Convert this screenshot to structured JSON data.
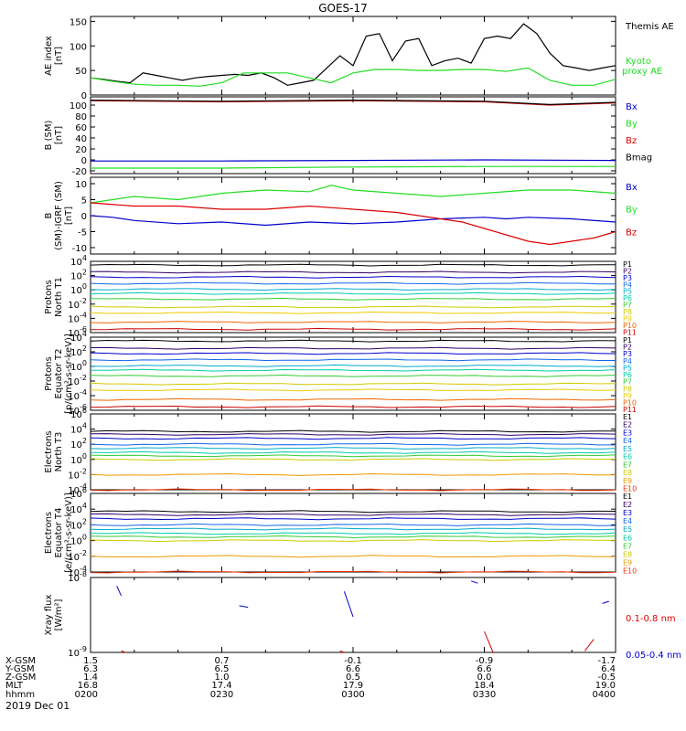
{
  "title": "GOES-17",
  "footer_date": "2019 Dec 01",
  "colors": {
    "black": "#000000",
    "green": "#22dd22",
    "red": "#dd0000",
    "blue": "#0000cc",
    "P": [
      "#000000",
      "#330066",
      "#0000cc",
      "#1166ee",
      "#00aacc",
      "#00ccaa",
      "#33cc33",
      "#cccc00",
      "#eecc00",
      "#ee6600",
      "#cc0000"
    ],
    "E": [
      "#000000",
      "#330066",
      "#0000cc",
      "#1166ee",
      "#00aacc",
      "#00ccaa",
      "#33cc33",
      "#cccc00",
      "#ee9900",
      "#ee3300",
      "#cc0000"
    ]
  },
  "ephemeris": {
    "labels": [
      "X-GSM",
      "Y-GSM",
      "Z-GSM",
      "MLT",
      "hhmm"
    ],
    "columns": [
      {
        "time": "0200",
        "values": [
          "1.5",
          "6.3",
          "1.4",
          "16.8",
          "0200"
        ]
      },
      {
        "time": "0230",
        "values": [
          "0.7",
          "6.5",
          "1.0",
          "17.4",
          "0230"
        ]
      },
      {
        "time": "0300",
        "values": [
          "-0.1",
          "6.6",
          "0.5",
          "17.9",
          "0300"
        ]
      },
      {
        "time": "0330",
        "values": [
          "-0.9",
          "6.6",
          "0.0",
          "18.4",
          "0330"
        ]
      },
      {
        "time": "0400",
        "values": [
          "-1.7",
          "6.4",
          "-0.5",
          "19.0",
          "0400"
        ]
      }
    ]
  },
  "chart_data": [
    {
      "type": "line",
      "panel": "AE index",
      "ylabel": "AE index",
      "yunits": "[nT]",
      "ylim": [
        0,
        160
      ],
      "yticks": [
        "0",
        "50",
        "100",
        "150"
      ],
      "xlim": [
        "0200",
        "0400"
      ],
      "series": [
        {
          "name": "Themis AE",
          "color": "black",
          "x": [
            0,
            3,
            6,
            9,
            12,
            15,
            18,
            21,
            24,
            27,
            30,
            33,
            36,
            39,
            42,
            45,
            48,
            51,
            54,
            57,
            60,
            63,
            66,
            69,
            72,
            75,
            78,
            81,
            84,
            87,
            90,
            93,
            96,
            99,
            102,
            105,
            108,
            111,
            114,
            117,
            120
          ],
          "y": [
            35,
            32,
            28,
            25,
            45,
            40,
            35,
            30,
            35,
            38,
            40,
            42,
            40,
            45,
            35,
            20,
            25,
            30,
            55,
            80,
            60,
            120,
            125,
            70,
            110,
            115,
            60,
            70,
            75,
            65,
            115,
            120,
            115,
            145,
            125,
            85,
            60,
            55,
            50,
            55,
            60
          ]
        },
        {
          "name": "Kyoto proxy AE",
          "color": "green",
          "x": [
            0,
            5,
            10,
            15,
            20,
            25,
            30,
            35,
            40,
            45,
            50,
            55,
            60,
            65,
            70,
            75,
            80,
            85,
            90,
            95,
            100,
            105,
            110,
            115,
            120
          ],
          "y": [
            35,
            28,
            22,
            20,
            20,
            18,
            25,
            45,
            45,
            45,
            35,
            25,
            45,
            52,
            52,
            50,
            50,
            52,
            52,
            48,
            55,
            30,
            20,
            20,
            32
          ]
        }
      ]
    },
    {
      "type": "line",
      "panel": "B (SM)",
      "ylabel": "B (SM)",
      "yunits": "[nT]",
      "ylim": [
        -25,
        115
      ],
      "yticks": [
        "-20",
        "0",
        "20",
        "40",
        "60",
        "80",
        "100"
      ],
      "series": [
        {
          "name": "Bx",
          "color": "blue",
          "x": [
            0,
            30,
            60,
            90,
            120
          ],
          "y": [
            -2,
            -2,
            -1,
            0,
            -1
          ]
        },
        {
          "name": "By",
          "color": "green",
          "x": [
            0,
            30,
            60,
            90,
            120
          ],
          "y": [
            -15,
            -15,
            -13,
            -12,
            -12
          ]
        },
        {
          "name": "Bz",
          "color": "red",
          "x": [
            0,
            30,
            60,
            90,
            105,
            120
          ],
          "y": [
            108,
            106,
            108,
            106,
            100,
            104
          ]
        },
        {
          "name": "Bmag",
          "color": "black",
          "x": [
            0,
            30,
            60,
            90,
            105,
            120
          ],
          "y": [
            109,
            107,
            109,
            107,
            101,
            105
          ]
        }
      ]
    },
    {
      "type": "line",
      "panel": "B (SM)-IGRF (SM)",
      "ylabel": "B (SM)-IGRF (SM)",
      "yunits": "[nT]",
      "ylim": [
        -12,
        12
      ],
      "yticks": [
        "-10",
        "-5",
        "0",
        "5",
        "10"
      ],
      "series": [
        {
          "name": "Bx",
          "color": "blue",
          "x": [
            0,
            5,
            10,
            20,
            30,
            40,
            50,
            60,
            70,
            80,
            90,
            95,
            100,
            110,
            120
          ],
          "y": [
            0,
            -0.5,
            -1.5,
            -2.5,
            -2,
            -3,
            -2,
            -2.5,
            -2,
            -1,
            -0.5,
            -1,
            -0.5,
            -1,
            -2
          ]
        },
        {
          "name": "By",
          "color": "green",
          "x": [
            0,
            10,
            20,
            30,
            40,
            50,
            55,
            60,
            70,
            80,
            90,
            100,
            110,
            120
          ],
          "y": [
            4,
            6,
            5,
            7,
            8,
            7.5,
            9.5,
            8,
            7,
            6,
            7,
            8,
            8,
            7
          ]
        },
        {
          "name": "Bz",
          "color": "red",
          "x": [
            0,
            10,
            20,
            30,
            40,
            50,
            60,
            70,
            75,
            80,
            85,
            90,
            95,
            100,
            105,
            110,
            115,
            120
          ],
          "y": [
            4,
            3,
            3,
            2,
            2,
            3,
            2,
            1,
            0,
            -1,
            -2,
            -4,
            -6,
            -8,
            -9,
            -8,
            -7,
            -5
          ]
        }
      ]
    },
    {
      "type": "line",
      "panel": "Protons North T1",
      "ylabel": "Protons North T1",
      "yunits": "",
      "scale": "log",
      "ylim": [
        1e-06,
        10000.0
      ],
      "yticks": [
        "10^4",
        "10^2",
        "10^0",
        "10^-2",
        "10^-4",
        "10^-6"
      ],
      "series_names": [
        "P1",
        "P2",
        "P3",
        "P4",
        "P5",
        "P6",
        "P7",
        "P8",
        "P9",
        "P10",
        "P11"
      ],
      "levels": [
        3000,
        300,
        60,
        8,
        1.2,
        0.3,
        0.05,
        0.004,
        0.0006,
        3e-05,
        3e-06
      ]
    },
    {
      "type": "line",
      "panel": "Protons Equator T2",
      "ylabel": "Protons Equator T2",
      "yunits": "[p/(cm²-s-sr-keV)]",
      "scale": "log",
      "ylim": [
        1e-06,
        10000.0
      ],
      "yticks": [
        "10^4",
        "10^2",
        "10^0",
        "10^-2",
        "10^-4",
        "10^-6"
      ],
      "series_names": [
        "P1",
        "P2",
        "P3",
        "P4",
        "P5",
        "P6",
        "P7",
        "P8",
        "P9",
        "P10",
        "P11"
      ],
      "levels": [
        3000,
        300,
        60,
        8,
        1.2,
        0.3,
        0.05,
        0.004,
        0.0006,
        3e-05,
        3e-06
      ]
    },
    {
      "type": "line",
      "panel": "Electrons North T3",
      "ylabel": "Electrons North T3",
      "yunits": "",
      "scale": "log",
      "ylim": [
        0.0001,
        1000000.0
      ],
      "yticks": [
        "10^6",
        "10^4",
        "10^2",
        "10^0",
        "10^-2",
        "10^-4"
      ],
      "series_names": [
        "E1",
        "E2",
        "E3",
        "E4",
        "E5",
        "E6",
        "E7",
        "E8",
        "E9",
        "E10"
      ],
      "levels": [
        5000,
        2000,
        600,
        100,
        30,
        8,
        3,
        1,
        0.01,
        0.0001
      ]
    },
    {
      "type": "line",
      "panel": "Electrons Equator T4",
      "ylabel": "Electrons Equator T4",
      "yunits": "[e/(cm²-s-sr-keV)]",
      "scale": "log",
      "ylim": [
        0.0001,
        1000000.0
      ],
      "yticks": [
        "10^6",
        "10^4",
        "10^2",
        "10^0",
        "10^-2",
        "10^-4"
      ],
      "series_names": [
        "E1",
        "E2",
        "E3",
        "E4",
        "E5",
        "E6",
        "E7",
        "E8",
        "E9",
        "E10"
      ],
      "levels": [
        5000,
        2000,
        600,
        100,
        30,
        8,
        3,
        1,
        0.01,
        0.0001
      ]
    },
    {
      "type": "line",
      "panel": "Xray flux",
      "ylabel": "Xray flux",
      "yunits": "[W/m²]",
      "scale": "log",
      "ylim": [
        1e-09,
        1e-08
      ],
      "yticks": [
        "10^-8",
        "10^-9"
      ],
      "series": [
        {
          "name": "0.1-0.8 nm",
          "color": "red"
        },
        {
          "name": "0.05-0.4 nm",
          "color": "blue"
        }
      ]
    }
  ]
}
